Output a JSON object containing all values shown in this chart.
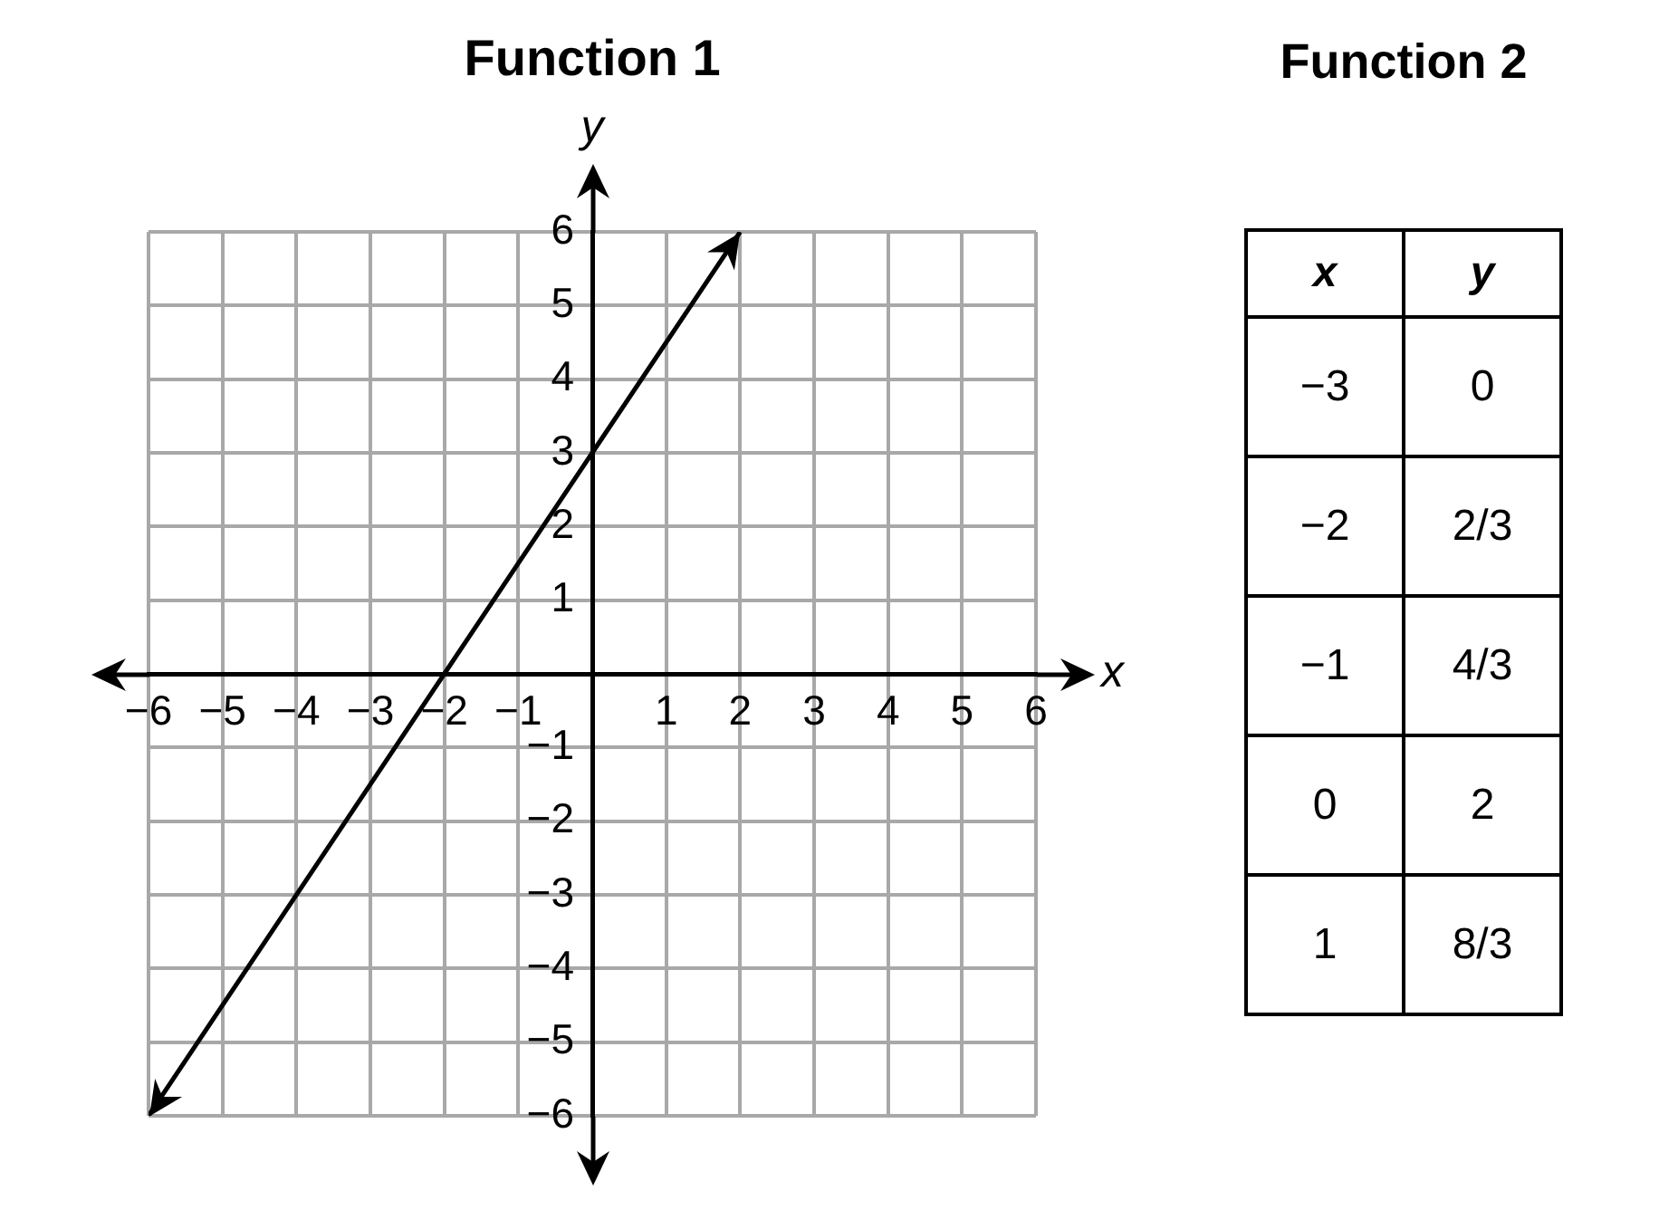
{
  "chart_data": [
    {
      "type": "line",
      "title": "Function 1",
      "xlabel": "x",
      "ylabel": "y",
      "xlim": [
        -6,
        6
      ],
      "ylim": [
        -6,
        6
      ],
      "xticks": [
        {
          "value": -6,
          "label": "−6"
        },
        {
          "value": -5,
          "label": "−5"
        },
        {
          "value": -4,
          "label": "−4"
        },
        {
          "value": -3,
          "label": "−3"
        },
        {
          "value": -2,
          "label": "−2"
        },
        {
          "value": -1,
          "label": "−1"
        },
        1,
        2,
        3,
        4,
        5,
        6
      ],
      "yticks": [
        {
          "value": -6,
          "label": "−6"
        },
        {
          "value": -5,
          "label": "−5"
        },
        {
          "value": -4,
          "label": "−4"
        },
        {
          "value": -3,
          "label": "−3"
        },
        {
          "value": -2,
          "label": "−2"
        },
        {
          "value": -1,
          "label": "−1"
        },
        1,
        2,
        3,
        4,
        5,
        6
      ],
      "grid": true,
      "marker": "none",
      "line_style": "solid",
      "series": [
        {
          "color": "#000000",
          "x": [
            -6,
            -2,
            0,
            2
          ],
          "values": [
            -6,
            0,
            3,
            6
          ]
        }
      ]
    },
    {
      "type": "heatmap",
      "title": "Function 2",
      "ylabel": "x",
      "categories": [
        "y"
      ],
      "y_categories": [
        "−3",
        "−2",
        "−1",
        "0",
        "1"
      ],
      "cells": [
        [
          0
        ],
        [
          0.667
        ],
        [
          1.333
        ],
        [
          2
        ],
        [
          2.667
        ]
      ],
      "cell_labels": [
        [
          "0"
        ],
        [
          "2/3"
        ],
        [
          "4/3"
        ],
        [
          "2"
        ],
        [
          "8/3"
        ]
      ]
    }
  ]
}
